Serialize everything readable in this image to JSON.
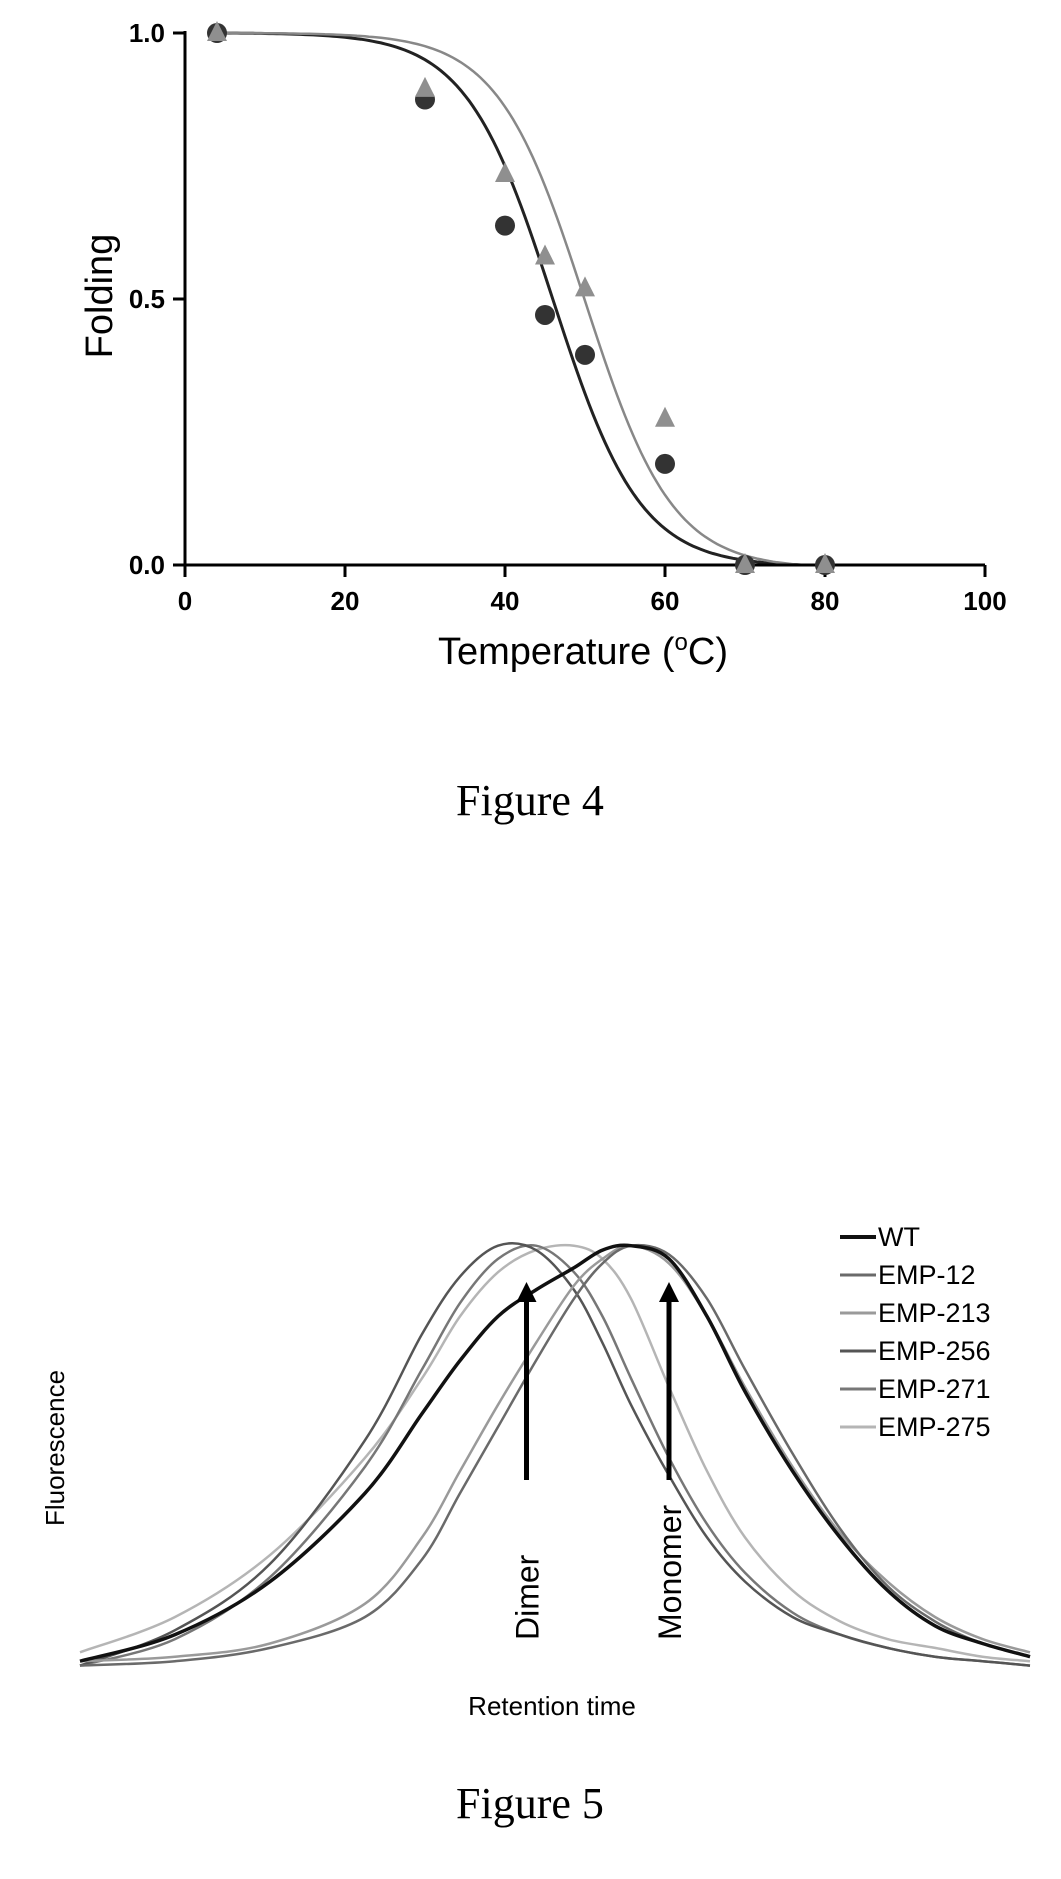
{
  "figure4": {
    "caption": "Figure 4",
    "chart_data": {
      "type": "scatter",
      "xlabel": "Temperature (",
      "xlabel_sup": "o",
      "xlabel_end": "C)",
      "ylabel": "Folding",
      "xlim": [
        0,
        100
      ],
      "ylim": [
        0,
        1
      ],
      "xticks": [
        "0",
        "20",
        "40",
        "60",
        "80",
        "100"
      ],
      "yticks": [
        "0.0",
        "0.5",
        "1.0"
      ],
      "series": [
        {
          "marker": "circle",
          "color": "#333333",
          "x": [
            4,
            30,
            40,
            45,
            50,
            60,
            70,
            80
          ],
          "y": [
            1.0,
            0.875,
            0.638,
            0.47,
            0.395,
            0.19,
            0.0,
            0.0
          ],
          "fit_midpoint": 46,
          "fit_width": 12
        },
        {
          "marker": "triangle",
          "color": "#8f8f8f",
          "x": [
            4,
            30,
            40,
            45,
            50,
            60,
            70,
            80
          ],
          "y": [
            1.0,
            0.895,
            0.735,
            0.58,
            0.52,
            0.275,
            0.0,
            0.0
          ],
          "fit_midpoint": 50,
          "fit_width": 12
        }
      ]
    }
  },
  "figure5": {
    "caption": "Figure 5",
    "chart_data": {
      "type": "line",
      "xlabel": "Retention time",
      "ylabel": "Fluorescence",
      "xlim": [
        0,
        100
      ],
      "ylim": [
        0,
        1
      ],
      "annotations": [
        {
          "text": "Dimer",
          "x": 47
        },
        {
          "text": "Monomer",
          "x": 62
        }
      ],
      "series": [
        {
          "name": "WT",
          "color": "#111111",
          "width": 3.5,
          "x": [
            0,
            10,
            20,
            30,
            36,
            40,
            44,
            48,
            52,
            55,
            58,
            62,
            66,
            70,
            75,
            80,
            85,
            90,
            95,
            100
          ],
          "y": [
            0.02,
            0.08,
            0.2,
            0.4,
            0.58,
            0.7,
            0.8,
            0.86,
            0.91,
            0.95,
            0.96,
            0.93,
            0.8,
            0.63,
            0.45,
            0.3,
            0.18,
            0.1,
            0.06,
            0.03
          ]
        },
        {
          "name": "EMP-12",
          "color": "#6a6a6a",
          "width": 2.5,
          "x": [
            0,
            10,
            20,
            30,
            36,
            40,
            44,
            48,
            52,
            55,
            58,
            62,
            66,
            70,
            75,
            80,
            85,
            90,
            95,
            100
          ],
          "y": [
            0.01,
            0.02,
            0.05,
            0.12,
            0.25,
            0.4,
            0.55,
            0.7,
            0.84,
            0.92,
            0.96,
            0.94,
            0.84,
            0.68,
            0.49,
            0.32,
            0.19,
            0.11,
            0.06,
            0.03
          ]
        },
        {
          "name": "EMP-213",
          "color": "#9a9a9a",
          "width": 2.5,
          "x": [
            0,
            10,
            20,
            30,
            36,
            40,
            44,
            48,
            52,
            55,
            58,
            62,
            66,
            70,
            75,
            80,
            85,
            90,
            95,
            100
          ],
          "y": [
            0.02,
            0.03,
            0.06,
            0.15,
            0.3,
            0.45,
            0.6,
            0.74,
            0.87,
            0.93,
            0.96,
            0.92,
            0.8,
            0.64,
            0.46,
            0.31,
            0.2,
            0.12,
            0.07,
            0.04
          ]
        },
        {
          "name": "EMP-256",
          "color": "#555555",
          "width": 2.5,
          "x": [
            0,
            10,
            20,
            30,
            36,
            40,
            44,
            48,
            52,
            55,
            58,
            62,
            66,
            70,
            75,
            80,
            85,
            90,
            95,
            100
          ],
          "y": [
            0.01,
            0.09,
            0.24,
            0.52,
            0.76,
            0.89,
            0.96,
            0.95,
            0.86,
            0.74,
            0.6,
            0.44,
            0.3,
            0.2,
            0.12,
            0.08,
            0.05,
            0.03,
            0.02,
            0.01
          ]
        },
        {
          "name": "EMP-271",
          "color": "#777777",
          "width": 2.5,
          "x": [
            0,
            10,
            20,
            30,
            36,
            40,
            44,
            48,
            52,
            55,
            58,
            62,
            66,
            70,
            75,
            80,
            85,
            90,
            95,
            100
          ],
          "y": [
            0.01,
            0.07,
            0.21,
            0.46,
            0.68,
            0.83,
            0.93,
            0.96,
            0.9,
            0.8,
            0.66,
            0.48,
            0.33,
            0.22,
            0.13,
            0.08,
            0.05,
            0.03,
            0.02,
            0.01
          ]
        },
        {
          "name": "EMP-275",
          "color": "#b5b5b5",
          "width": 2.5,
          "x": [
            0,
            10,
            20,
            30,
            36,
            40,
            44,
            48,
            52,
            55,
            58,
            62,
            66,
            70,
            75,
            80,
            85,
            90,
            95,
            100
          ],
          "y": [
            0.04,
            0.12,
            0.26,
            0.48,
            0.66,
            0.8,
            0.9,
            0.95,
            0.96,
            0.93,
            0.84,
            0.64,
            0.45,
            0.3,
            0.18,
            0.11,
            0.07,
            0.05,
            0.03,
            0.02
          ]
        }
      ]
    }
  }
}
